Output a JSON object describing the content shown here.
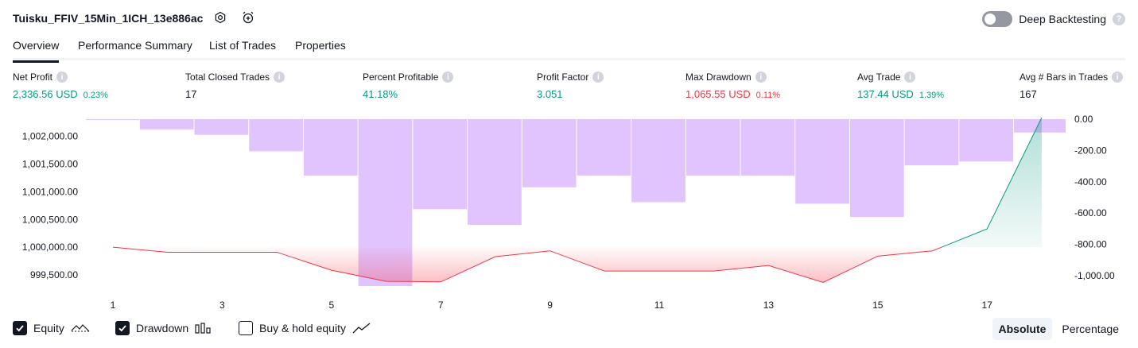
{
  "header": {
    "title": "Tuisku_FFIV_15Min_1ICH_13e886ac",
    "icons": [
      "settings-icon",
      "add-alert-icon"
    ],
    "deep_backtesting_label": "Deep Backtesting",
    "deep_backtesting_enabled": false
  },
  "tabs": [
    {
      "label": "Overview",
      "active": true
    },
    {
      "label": "Performance Summary",
      "active": false
    },
    {
      "label": "List of Trades",
      "active": false
    },
    {
      "label": "Properties",
      "active": false
    }
  ],
  "metrics": {
    "net_profit": {
      "label": "Net Profit",
      "value": "2,336.56 USD",
      "sub": "0.23%"
    },
    "total_closed_trades": {
      "label": "Total Closed Trades",
      "value": "17"
    },
    "percent_profitable": {
      "label": "Percent Profitable",
      "value": "41.18%"
    },
    "profit_factor": {
      "label": "Profit Factor",
      "value": "3.051"
    },
    "max_drawdown": {
      "label": "Max Drawdown",
      "value": "1,065.55 USD",
      "sub": "0.11%"
    },
    "avg_trade": {
      "label": "Avg Trade",
      "value": "137.44 USD",
      "sub": "1.39%"
    },
    "avg_bars": {
      "label": "Avg # Bars in Trades",
      "value": "167"
    }
  },
  "colors": {
    "profit": "#089981",
    "loss": "#f23645",
    "drawdown_bar": "#e1c4fd",
    "text": "#131722"
  },
  "chart_data": {
    "type": "line",
    "x": [
      1,
      2,
      3,
      4,
      5,
      6,
      7,
      8,
      9,
      10,
      11,
      12,
      13,
      14,
      15,
      16,
      17,
      18
    ],
    "x_ticks": [
      "1",
      "3",
      "5",
      "7",
      "9",
      "11",
      "13",
      "15",
      "17"
    ],
    "series": [
      {
        "name": "Equity",
        "axis": "left",
        "values": [
          1000000,
          999910,
          999910,
          999910,
          999585,
          999385,
          999375,
          999830,
          999935,
          999570,
          999570,
          999570,
          999670,
          999365,
          999840,
          999935,
          1000330,
          1002336.56
        ]
      },
      {
        "name": "Drawdown",
        "axis": "right",
        "type": "bar",
        "values": [
          0,
          -65,
          -100,
          -205,
          -360,
          -1065.55,
          -575,
          -675,
          -435,
          -360,
          -530,
          -360,
          -360,
          -540,
          -625,
          -295,
          -270,
          -85
        ]
      }
    ],
    "left_axis": {
      "ticks": [
        "1,002,000.00",
        "1,001,500.00",
        "1,001,000.00",
        "1,000,500.00",
        "1,000,000.00",
        "999,500.00"
      ],
      "ylim": [
        999300,
        1002310
      ]
    },
    "right_axis": {
      "ticks": [
        "0.00",
        "-200.00",
        "-400.00",
        "-600.00",
        "-800.00",
        "-1,000.00"
      ],
      "ylim": [
        -1065.55,
        0
      ]
    },
    "baseline": 1000000,
    "grid": false
  },
  "legend": {
    "equity": {
      "label": "Equity",
      "checked": true
    },
    "drawdown": {
      "label": "Drawdown",
      "checked": true
    },
    "buy_hold": {
      "label": "Buy & hold equity",
      "checked": false
    }
  },
  "mode": {
    "absolute_label": "Absolute",
    "percentage_label": "Percentage",
    "selected": "Absolute"
  }
}
